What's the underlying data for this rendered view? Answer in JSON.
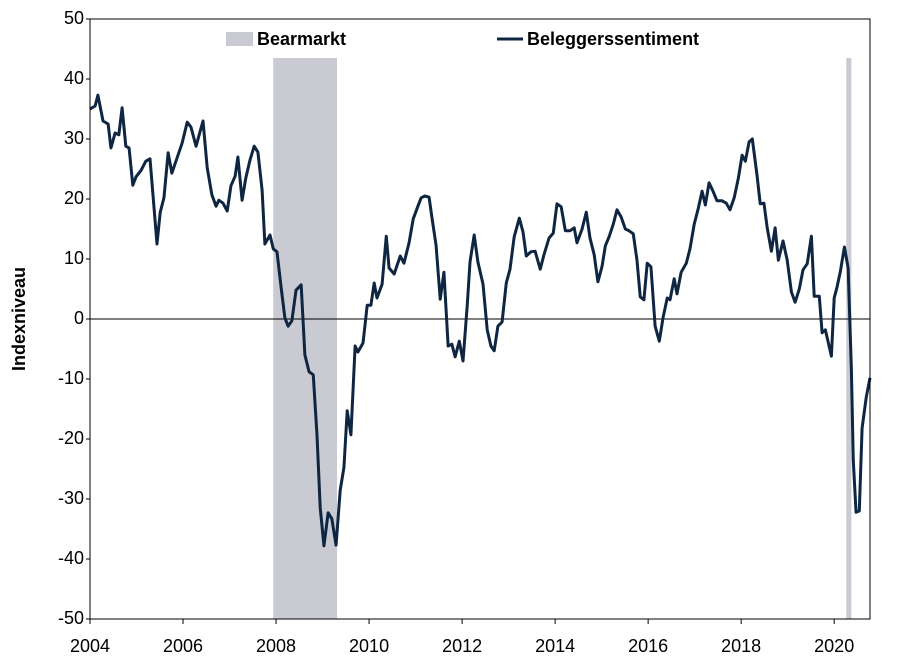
{
  "chart_data": {
    "type": "line",
    "y_label": "Indexniveau",
    "x": [
      2004.0,
      2004.11,
      2004.17,
      2004.28,
      2004.39,
      2004.45,
      2004.54,
      2004.62,
      2004.69,
      2004.77,
      2004.84,
      2004.92,
      2004.99,
      2005.1,
      2005.2,
      2005.29,
      2005.38,
      2005.44,
      2005.51,
      2005.59,
      2005.68,
      2005.76,
      2005.87,
      2005.98,
      2006.09,
      2006.17,
      2006.28,
      2006.43,
      2006.52,
      2006.62,
      2006.71,
      2006.77,
      2006.86,
      2006.95,
      2007.03,
      2007.12,
      2007.18,
      2007.27,
      2007.35,
      2007.44,
      2007.53,
      2007.61,
      2007.7,
      2007.76,
      2007.87,
      2007.94,
      2008.02,
      2008.11,
      2008.19,
      2008.26,
      2008.34,
      2008.43,
      2008.54,
      2008.62,
      2008.71,
      2008.8,
      2008.88,
      2008.95,
      2009.03,
      2009.12,
      2009.2,
      2009.29,
      2009.38,
      2009.46,
      2009.53,
      2009.61,
      2009.7,
      2009.76,
      2009.87,
      2009.96,
      2010.04,
      2010.11,
      2010.17,
      2010.28,
      2010.37,
      2010.43,
      2010.54,
      2010.67,
      2010.75,
      2010.86,
      2010.95,
      2011.05,
      2011.12,
      2011.2,
      2011.29,
      2011.35,
      2011.44,
      2011.53,
      2011.61,
      2011.7,
      2011.78,
      2011.85,
      2011.94,
      2012.02,
      2012.11,
      2012.17,
      2012.26,
      2012.34,
      2012.45,
      2012.54,
      2012.62,
      2012.69,
      2012.77,
      2012.86,
      2012.95,
      2013.03,
      2013.12,
      2013.23,
      2013.31,
      2013.38,
      2013.48,
      2013.57,
      2013.68,
      2013.76,
      2013.87,
      2013.96,
      2014.04,
      2014.13,
      2014.22,
      2014.32,
      2014.41,
      2014.47,
      2014.58,
      2014.67,
      2014.75,
      2014.84,
      2014.92,
      2015.01,
      2015.08,
      2015.16,
      2015.25,
      2015.33,
      2015.42,
      2015.51,
      2015.59,
      2015.68,
      2015.76,
      2015.83,
      2015.91,
      2015.98,
      2016.06,
      2016.15,
      2016.24,
      2016.32,
      2016.41,
      2016.47,
      2016.56,
      2016.62,
      2016.71,
      2016.82,
      2016.9,
      2016.99,
      2017.08,
      2017.16,
      2017.23,
      2017.31,
      2017.4,
      2017.48,
      2017.59,
      2017.68,
      2017.76,
      2017.85,
      2017.94,
      2018.02,
      2018.09,
      2018.17,
      2018.24,
      2018.34,
      2018.41,
      2018.49,
      2018.56,
      2018.65,
      2018.73,
      2018.8,
      2018.9,
      2018.99,
      2019.08,
      2019.16,
      2019.25,
      2019.33,
      2019.42,
      2019.51,
      2019.57,
      2019.68,
      2019.74,
      2019.81,
      2019.94,
      2020.0,
      2020.06,
      2020.13,
      2020.22,
      2020.3,
      2020.37,
      2020.41,
      2020.47,
      2020.54,
      2020.6,
      2020.69,
      2020.77
    ],
    "series": [
      {
        "name": "Beleggerssentiment",
        "color": "#0e2641",
        "values": [
          35.0,
          35.5,
          37.3,
          33.0,
          32.5,
          28.5,
          31.0,
          30.7,
          35.2,
          28.8,
          28.5,
          22.3,
          23.7,
          24.8,
          26.3,
          26.7,
          18.2,
          12.5,
          17.8,
          20.2,
          27.7,
          24.3,
          26.8,
          29.3,
          32.8,
          32.0,
          28.8,
          33.0,
          25.2,
          20.7,
          18.8,
          19.8,
          19.3,
          18.0,
          22.2,
          23.8,
          27.0,
          19.8,
          23.5,
          26.5,
          28.8,
          27.8,
          21.5,
          12.5,
          14.0,
          11.7,
          11.2,
          5.2,
          0.2,
          -1.2,
          -0.3,
          4.8,
          5.7,
          -6.0,
          -8.8,
          -9.3,
          -19.3,
          -31.5,
          -37.8,
          -32.3,
          -33.3,
          -37.7,
          -28.5,
          -24.7,
          -15.3,
          -19.3,
          -4.5,
          -5.5,
          -4.0,
          2.3,
          2.3,
          6.0,
          3.5,
          5.8,
          13.8,
          8.5,
          7.5,
          10.5,
          9.3,
          12.7,
          16.7,
          18.8,
          20.2,
          20.5,
          20.3,
          17.0,
          12.3,
          3.3,
          7.8,
          -4.5,
          -4.2,
          -6.3,
          -3.7,
          -7.0,
          2.2,
          9.5,
          14.0,
          9.5,
          5.8,
          -1.8,
          -4.5,
          -5.3,
          -1.2,
          -0.5,
          6.0,
          8.3,
          13.7,
          16.8,
          14.5,
          10.5,
          11.2,
          11.3,
          8.3,
          10.7,
          13.5,
          14.3,
          19.2,
          18.7,
          14.7,
          14.7,
          15.2,
          12.7,
          15.0,
          17.8,
          13.5,
          10.7,
          6.2,
          8.8,
          12.2,
          13.7,
          15.8,
          18.2,
          17.0,
          15.0,
          14.7,
          14.2,
          9.8,
          3.7,
          3.2,
          9.3,
          8.7,
          -1.2,
          -3.7,
          0.2,
          3.5,
          3.2,
          6.7,
          4.2,
          7.8,
          9.3,
          11.7,
          15.8,
          18.5,
          21.3,
          19.0,
          22.7,
          21.2,
          19.7,
          19.7,
          19.3,
          18.2,
          20.2,
          23.5,
          27.3,
          26.3,
          29.5,
          30.0,
          24.0,
          19.2,
          19.3,
          15.2,
          11.3,
          15.2,
          9.8,
          13.0,
          9.8,
          4.5,
          2.8,
          5.0,
          8.2,
          9.2,
          13.8,
          3.8,
          3.8,
          -2.3,
          -1.8,
          -6.2,
          3.5,
          5.3,
          7.8,
          12.0,
          8.5,
          -8.5,
          -23.5,
          -32.2,
          -32.0,
          -18.2,
          -13.0,
          -9.8
        ]
      }
    ],
    "bands": {
      "name": "Bearmarkt",
      "color": "#c9cad2",
      "ranges": [
        [
          2007.94,
          2009.31
        ],
        [
          2020.26,
          2020.37
        ]
      ]
    },
    "xlim": [
      2004,
      2020.77
    ],
    "xticks": [
      2004,
      2006,
      2008,
      2010,
      2012,
      2014,
      2016,
      2018,
      2020
    ],
    "ylim": [
      -50,
      50
    ],
    "yticks": [
      -50,
      -40,
      -30,
      -20,
      -10,
      0,
      10,
      20,
      30,
      40,
      50
    ],
    "zero_line": true
  }
}
